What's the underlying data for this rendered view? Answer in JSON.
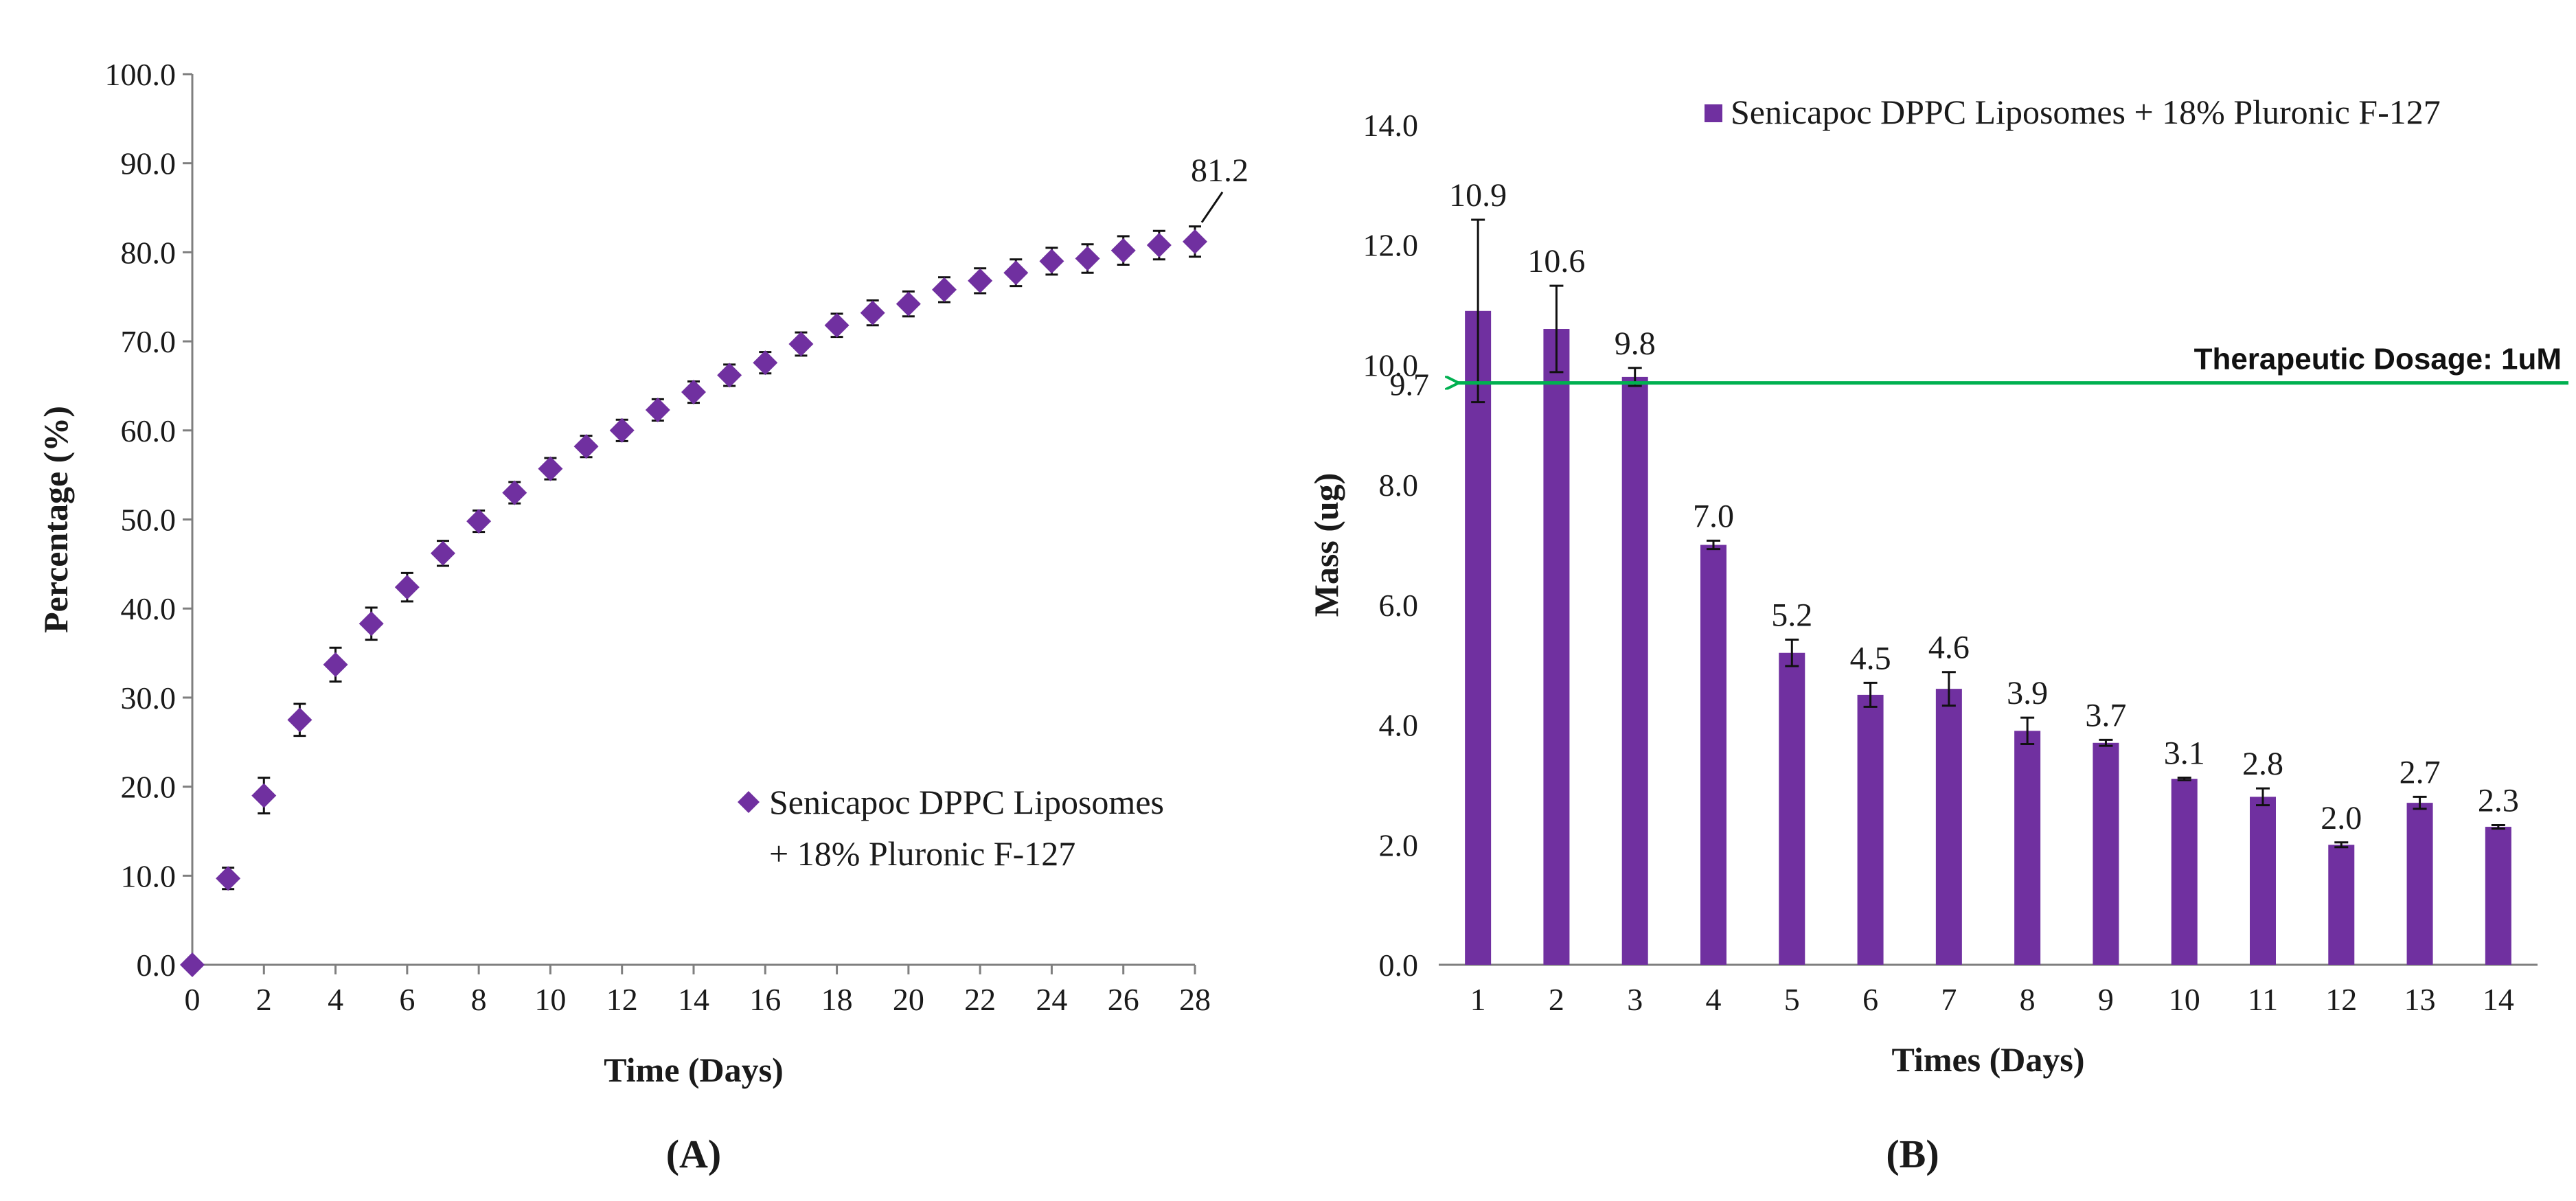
{
  "colors": {
    "marker": "#7030A0",
    "bar": "#7030A0",
    "arrow": "#00B050",
    "axis": "#7f7f7f",
    "text": "#1a1a1a"
  },
  "chart_data": [
    {
      "type": "scatter",
      "panel_label": "(A)",
      "xlabel": "Time (Days)",
      "ylabel": "Percentage (%)",
      "xlim": [
        0,
        28
      ],
      "ylim": [
        0,
        100
      ],
      "x_ticks": [
        "0",
        "2",
        "4",
        "6",
        "8",
        "10",
        "12",
        "14",
        "16",
        "18",
        "20",
        "22",
        "24",
        "26",
        "28"
      ],
      "y_ticks": [
        "0.0",
        "10.0",
        "20.0",
        "30.0",
        "40.0",
        "50.0",
        "60.0",
        "70.0",
        "80.0",
        "90.0",
        "100.0"
      ],
      "legend": [
        "Senicapoc DPPC Liposomes",
        "+ 18% Pluronic F-127"
      ],
      "annotation": "81.2",
      "series": [
        {
          "name": "Senicapoc DPPC Liposomes + 18% Pluronic F-127",
          "x": [
            0,
            1,
            2,
            3,
            4,
            5,
            6,
            7,
            8,
            9,
            10,
            11,
            12,
            13,
            14,
            15,
            16,
            17,
            18,
            19,
            20,
            21,
            22,
            23,
            24,
            25,
            26,
            27,
            28
          ],
          "y": [
            0.0,
            9.7,
            19.0,
            27.5,
            33.7,
            38.3,
            42.4,
            46.2,
            49.8,
            53.0,
            55.7,
            58.2,
            60.0,
            62.3,
            64.3,
            66.2,
            67.6,
            69.7,
            71.8,
            73.2,
            74.2,
            75.8,
            76.8,
            77.7,
            79.0,
            79.3,
            80.2,
            80.8,
            81.2
          ],
          "error": [
            0,
            1.2,
            2.0,
            1.8,
            1.9,
            1.8,
            1.6,
            1.4,
            1.2,
            1.2,
            1.2,
            1.2,
            1.2,
            1.2,
            1.2,
            1.2,
            1.2,
            1.3,
            1.3,
            1.4,
            1.4,
            1.4,
            1.4,
            1.5,
            1.5,
            1.6,
            1.6,
            1.6,
            1.7
          ]
        }
      ]
    },
    {
      "type": "bar",
      "panel_label": "(B)",
      "xlabel": "Times (Days)",
      "ylabel": "Mass (ug)",
      "ylim": [
        0,
        14
      ],
      "categories": [
        "1",
        "2",
        "3",
        "4",
        "5",
        "6",
        "7",
        "8",
        "9",
        "10",
        "11",
        "12",
        "13",
        "14"
      ],
      "y_ticks": [
        "0.0",
        "2.0",
        "4.0",
        "6.0",
        "8.0",
        "10.0",
        "12.0",
        "14.0"
      ],
      "legend": "Senicapoc DPPC Liposomes + 18% Pluronic F-127",
      "values": [
        10.9,
        10.6,
        9.8,
        7.0,
        5.2,
        4.5,
        4.6,
        3.9,
        3.7,
        3.1,
        2.8,
        2.0,
        2.7,
        2.3
      ],
      "value_labels": [
        "10.9",
        "10.6",
        "9.8",
        "7.0",
        "5.2",
        "4.5",
        "4.6",
        "3.9",
        "3.7",
        "3.1",
        "2.8",
        "2.0",
        "2.7",
        "2.3"
      ],
      "error": [
        1.52,
        0.72,
        0.15,
        0.07,
        0.22,
        0.2,
        0.28,
        0.22,
        0.05,
        0.02,
        0.14,
        0.04,
        0.1,
        0.03
      ],
      "threshold": {
        "value": 9.7,
        "label": "9.7",
        "text": "Therapeutic Dosage: 1uM"
      }
    }
  ]
}
